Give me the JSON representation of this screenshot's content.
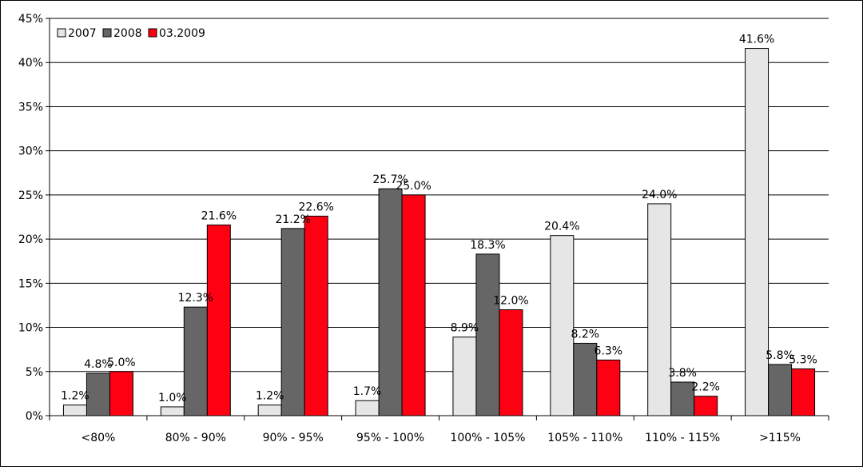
{
  "chart_data": {
    "type": "bar",
    "categories": [
      "<80%",
      "80% - 90%",
      "90% - 95%",
      "95% - 100%",
      "100% - 105%",
      "105% - 110%",
      "110% - 115%",
      ">115%"
    ],
    "series": [
      {
        "name": "2007",
        "values": [
          1.2,
          1.0,
          1.2,
          1.7,
          8.9,
          20.4,
          24.0,
          41.6
        ],
        "labels": [
          "1.2%",
          "1.0%",
          "1.2%",
          "1.7%",
          "8.9%",
          "20.4%",
          "24.0%",
          "41.6%"
        ],
        "color": "#e6e6e6"
      },
      {
        "name": "2008",
        "values": [
          4.8,
          12.3,
          21.2,
          25.7,
          18.3,
          8.2,
          3.8,
          5.8
        ],
        "labels": [
          "4.8%",
          "12.3%",
          "21.2%",
          "25.7%",
          "18.3%",
          "8.2%",
          "3.8%",
          "5.8%"
        ],
        "color": "#666666"
      },
      {
        "name": "03.2009",
        "values": [
          5.0,
          21.6,
          22.6,
          25.0,
          12.0,
          6.3,
          2.2,
          5.3
        ],
        "labels": [
          "5.0%",
          "21.6%",
          "22.6%",
          "25.0%",
          "12.0%",
          "6.3%",
          "2.2%",
          "5.3%"
        ],
        "color": "#ff0013"
      }
    ],
    "ylim": [
      0,
      45
    ],
    "yticks": [
      0,
      5,
      10,
      15,
      20,
      25,
      30,
      35,
      40,
      45
    ],
    "ytick_labels": [
      "0%",
      "5%",
      "10%",
      "15%",
      "20%",
      "25%",
      "30%",
      "35%",
      "40%",
      "45%"
    ],
    "grid": true,
    "legend_position": "top-left"
  }
}
